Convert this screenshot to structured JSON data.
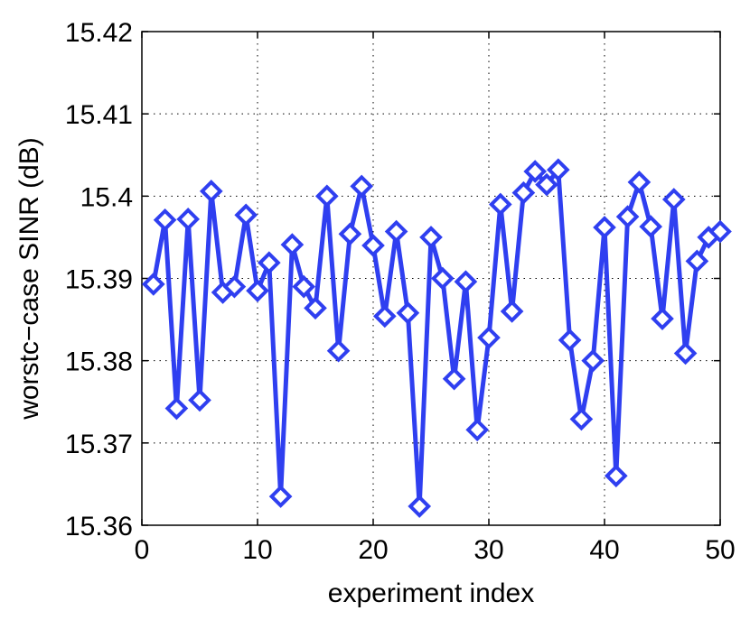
{
  "chart_data": {
    "type": "line",
    "xlabel": "experiment index",
    "ylabel": "worstc−case SINR (dB)",
    "xlim": [
      0,
      50
    ],
    "ylim": [
      15.36,
      15.42
    ],
    "xticks": [
      0,
      10,
      20,
      30,
      40,
      50
    ],
    "xtick_labels": [
      "0",
      "10",
      "20",
      "30",
      "40",
      "50"
    ],
    "yticks": [
      15.36,
      15.37,
      15.38,
      15.39,
      15.4,
      15.41,
      15.42
    ],
    "ytick_labels": [
      "15.36",
      "15.37",
      "15.38",
      "15.39",
      "15.4",
      "15.41",
      "15.42"
    ],
    "grid": true,
    "marker": "diamond",
    "series": [
      {
        "color": "#2f3ff0",
        "x": [
          1,
          2,
          3,
          4,
          5,
          6,
          7,
          8,
          9,
          10,
          11,
          12,
          13,
          14,
          15,
          16,
          17,
          18,
          19,
          20,
          21,
          22,
          23,
          24,
          25,
          26,
          27,
          28,
          29,
          30,
          31,
          32,
          33,
          34,
          35,
          36,
          37,
          38,
          39,
          40,
          41,
          42,
          43,
          44,
          45,
          46,
          47,
          48,
          49,
          50
        ],
        "values": [
          15.3893,
          15.3971,
          15.3742,
          15.3972,
          15.3752,
          15.4006,
          15.3883,
          15.389,
          15.3977,
          15.3885,
          15.3919,
          15.3635,
          15.3941,
          15.389,
          15.3864,
          15.4,
          15.3812,
          15.3954,
          15.4012,
          15.394,
          15.3854,
          15.3957,
          15.3858,
          15.3623,
          15.395,
          15.39,
          15.3778,
          15.3896,
          15.3716,
          15.3828,
          15.399,
          15.386,
          15.4004,
          15.403,
          15.4014,
          15.4032,
          15.3825,
          15.3729,
          15.38,
          15.3962,
          15.366,
          15.3975,
          15.4017,
          15.3963,
          15.3851,
          15.3996,
          15.3809,
          15.3921,
          15.395,
          15.3957
        ]
      }
    ]
  }
}
